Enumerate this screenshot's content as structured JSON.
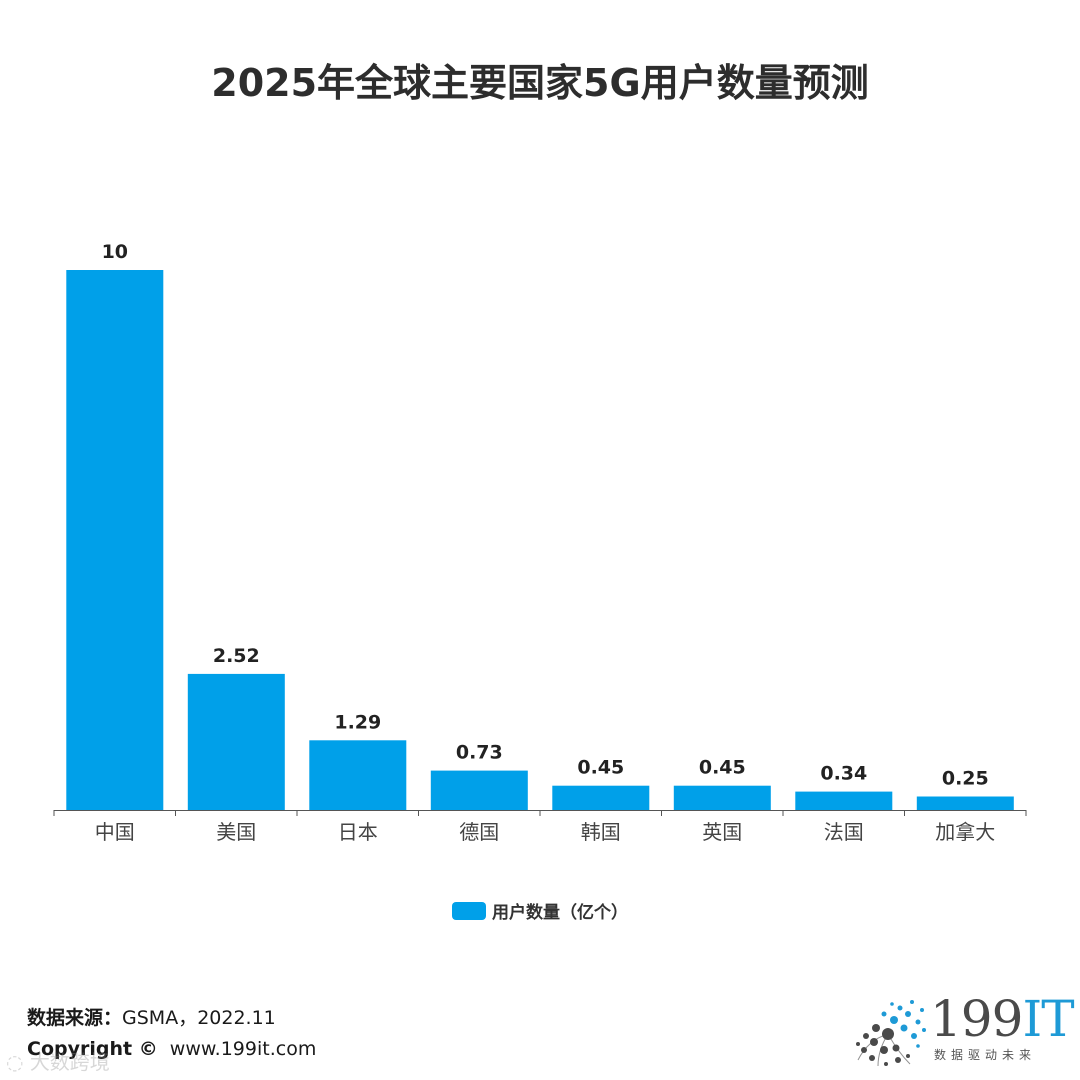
{
  "chart_data": {
    "type": "bar",
    "title": "2025年全球主要国家5G用户数量预测",
    "categories": [
      "中国",
      "美国",
      "日本",
      "德国",
      "韩国",
      "英国",
      "法国",
      "加拿大"
    ],
    "series": [
      {
        "name": "用户数量（亿个）",
        "values": [
          10,
          2.52,
          1.29,
          0.73,
          0.45,
          0.45,
          0.34,
          0.25
        ],
        "labels": [
          "10",
          "2.52",
          "1.29",
          "0.73",
          "0.45",
          "0.45",
          "0.34",
          "0.25"
        ]
      }
    ],
    "xlabel": "",
    "ylabel": "",
    "ylim": [
      0,
      10
    ],
    "grid": false,
    "legend_position": "bottom",
    "bar_color": "#00a0e9"
  },
  "footer": {
    "source_label": "数据来源：",
    "source_value": "GSMA，2022.11",
    "copyright_label": "Copyright ©",
    "copyright_value": "www.199it.com",
    "watermark": "大数跨境"
  },
  "logo": {
    "name_digits": "199",
    "name_it": "IT",
    "tagline": "数据驱动未来"
  },
  "colors": {
    "bar": "#00a0e9",
    "logo_accent": "#1e9ad6",
    "text": "#2d2d2d"
  }
}
